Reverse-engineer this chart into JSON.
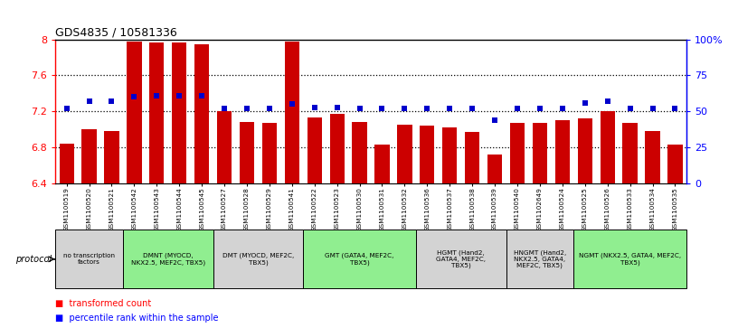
{
  "title": "GDS4835 / 10581336",
  "samples": [
    "GSM1100519",
    "GSM1100520",
    "GSM1100521",
    "GSM1100542",
    "GSM1100543",
    "GSM1100544",
    "GSM1100545",
    "GSM1100527",
    "GSM1100528",
    "GSM1100529",
    "GSM1100541",
    "GSM1100522",
    "GSM1100523",
    "GSM1100530",
    "GSM1100531",
    "GSM1100532",
    "GSM1100536",
    "GSM1100537",
    "GSM1100538",
    "GSM1100539",
    "GSM1100540",
    "GSM1102649",
    "GSM1100524",
    "GSM1100525",
    "GSM1100526",
    "GSM1100533",
    "GSM1100534",
    "GSM1100535"
  ],
  "bar_values": [
    6.84,
    7.0,
    6.98,
    7.98,
    7.97,
    7.97,
    7.95,
    7.2,
    7.08,
    7.07,
    7.98,
    7.13,
    7.17,
    7.08,
    6.83,
    7.05,
    7.04,
    7.02,
    6.97,
    6.72,
    7.07,
    7.07,
    7.1,
    7.12,
    7.2,
    7.07,
    6.98,
    6.83
  ],
  "percentile_values": [
    52,
    57,
    57,
    60,
    61,
    61,
    61,
    52,
    52,
    52,
    55,
    53,
    53,
    52,
    52,
    52,
    52,
    52,
    52,
    44,
    52,
    52,
    52,
    56,
    57,
    52,
    52,
    52
  ],
  "ylim": [
    6.4,
    8.0
  ],
  "yticks": [
    6.4,
    6.8,
    7.2,
    7.6,
    8.0
  ],
  "ytick_labels": [
    "6.4",
    "6.8",
    "7.2",
    "7.6",
    "8"
  ],
  "right_yticks": [
    0,
    25,
    50,
    75,
    100
  ],
  "right_ytick_labels": [
    "0",
    "25",
    "50",
    "75",
    "100%"
  ],
  "bar_color": "#cc0000",
  "dot_color": "#0000cc",
  "bar_bottom": 6.4,
  "protocol_groups": [
    {
      "label": "no transcription\nfactors",
      "start": 0,
      "end": 3,
      "color": "#d3d3d3"
    },
    {
      "label": "DMNT (MYOCD,\nNKX2.5, MEF2C, TBX5)",
      "start": 3,
      "end": 7,
      "color": "#90ee90"
    },
    {
      "label": "DMT (MYOCD, MEF2C,\nTBX5)",
      "start": 7,
      "end": 11,
      "color": "#d3d3d3"
    },
    {
      "label": "GMT (GATA4, MEF2C,\nTBX5)",
      "start": 11,
      "end": 16,
      "color": "#90ee90"
    },
    {
      "label": "HGMT (Hand2,\nGATA4, MEF2C,\nTBX5)",
      "start": 16,
      "end": 20,
      "color": "#d3d3d3"
    },
    {
      "label": "HNGMT (Hand2,\nNKX2.5, GATA4,\nMEF2C, TBX5)",
      "start": 20,
      "end": 23,
      "color": "#d3d3d3"
    },
    {
      "label": "NGMT (NKX2.5, GATA4, MEF2C,\nTBX5)",
      "start": 23,
      "end": 28,
      "color": "#90ee90"
    }
  ],
  "dotted_line_values": [
    6.8,
    7.2,
    7.6
  ],
  "background_color": "#ffffff"
}
